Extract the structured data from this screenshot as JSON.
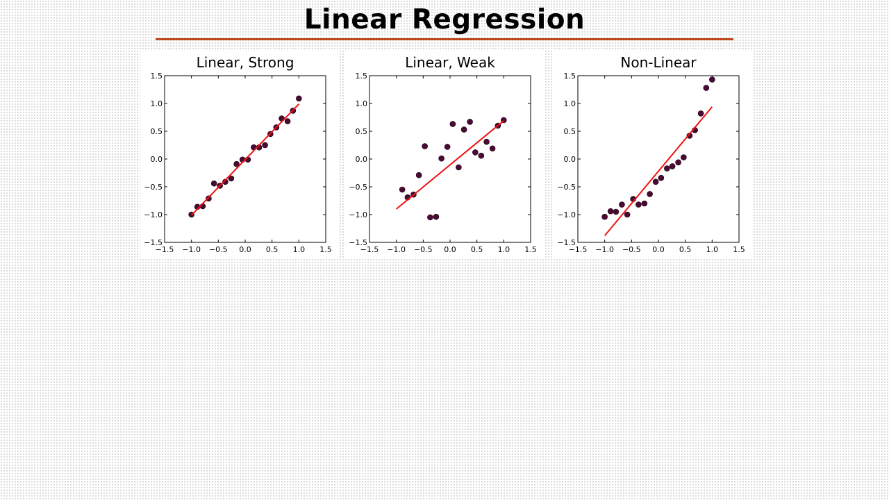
{
  "slide": {
    "title": "Linear Regression",
    "accent_color": "#c0451a"
  },
  "chart_data": [
    {
      "type": "scatter",
      "title": "Linear, Strong",
      "xlim": [
        -1.5,
        1.5
      ],
      "ylim": [
        -1.5,
        1.5
      ],
      "xticks": [
        "−1.5",
        "−1.0",
        "−0.5",
        "0.0",
        "0.5",
        "1.0",
        "1.5"
      ],
      "yticks": [
        "−1.5",
        "−1.0",
        "−0.5",
        "0.0",
        "0.5",
        "1.0",
        "1.5"
      ],
      "grid": false,
      "point_color": "#4a0a33",
      "line_color": "#ee1111",
      "points": [
        [
          -1.0,
          -1.0
        ],
        [
          -0.89,
          -0.86
        ],
        [
          -0.79,
          -0.85
        ],
        [
          -0.68,
          -0.71
        ],
        [
          -0.58,
          -0.44
        ],
        [
          -0.47,
          -0.48
        ],
        [
          -0.37,
          -0.41
        ],
        [
          -0.26,
          -0.35
        ],
        [
          -0.16,
          -0.09
        ],
        [
          -0.05,
          -0.01
        ],
        [
          0.05,
          -0.01
        ],
        [
          0.16,
          0.21
        ],
        [
          0.26,
          0.21
        ],
        [
          0.37,
          0.25
        ],
        [
          0.47,
          0.45
        ],
        [
          0.58,
          0.57
        ],
        [
          0.68,
          0.73
        ],
        [
          0.79,
          0.68
        ],
        [
          0.89,
          0.87
        ],
        [
          1.0,
          1.09
        ]
      ],
      "fit_line": [
        [
          -1.0,
          -1.01
        ],
        [
          1.0,
          0.99
        ]
      ]
    },
    {
      "type": "scatter",
      "title": "Linear, Weak",
      "xlim": [
        -1.5,
        1.5
      ],
      "ylim": [
        -1.5,
        1.5
      ],
      "xticks": [
        "−1.5",
        "−1.0",
        "−0.5",
        "0.0",
        "0.5",
        "1.0",
        "1.5"
      ],
      "yticks": [
        "−1.5",
        "−1.0",
        "−0.5",
        "0.0",
        "0.5",
        "1.0",
        "1.5"
      ],
      "grid": false,
      "point_color": "#4a0a33",
      "line_color": "#ee1111",
      "points": [
        [
          -0.89,
          -0.55
        ],
        [
          -0.79,
          -0.69
        ],
        [
          -0.68,
          -0.64
        ],
        [
          -0.58,
          -0.29
        ],
        [
          -0.47,
          0.23
        ],
        [
          -0.37,
          -1.05
        ],
        [
          -0.26,
          -1.04
        ],
        [
          -0.16,
          0.01
        ],
        [
          -0.05,
          0.22
        ],
        [
          0.05,
          0.63
        ],
        [
          0.16,
          -0.15
        ],
        [
          0.26,
          0.53
        ],
        [
          0.37,
          0.67
        ],
        [
          0.47,
          0.12
        ],
        [
          0.58,
          0.06
        ],
        [
          0.68,
          0.31
        ],
        [
          0.79,
          0.19
        ],
        [
          0.89,
          0.6
        ],
        [
          1.0,
          0.7
        ]
      ],
      "fit_line": [
        [
          -1.0,
          -0.9
        ],
        [
          1.0,
          0.69
        ]
      ]
    },
    {
      "type": "scatter",
      "title": "Non-Linear",
      "xlim": [
        -1.5,
        1.5
      ],
      "ylim": [
        -1.5,
        1.5
      ],
      "xticks": [
        "−1.5",
        "−1.0",
        "−0.5",
        "0.0",
        "0.5",
        "1.0",
        "1.5"
      ],
      "yticks": [
        "−1.5",
        "−1.0",
        "−0.5",
        "0.0",
        "0.5",
        "1.0",
        "1.5"
      ],
      "grid": false,
      "point_color": "#4a0a33",
      "line_color": "#ee1111",
      "points": [
        [
          -1.0,
          -1.04
        ],
        [
          -0.89,
          -0.94
        ],
        [
          -0.79,
          -0.95
        ],
        [
          -0.68,
          -0.82
        ],
        [
          -0.58,
          -1.0
        ],
        [
          -0.47,
          -0.72
        ],
        [
          -0.37,
          -0.82
        ],
        [
          -0.26,
          -0.8
        ],
        [
          -0.16,
          -0.63
        ],
        [
          -0.05,
          -0.41
        ],
        [
          0.05,
          -0.34
        ],
        [
          0.16,
          -0.17
        ],
        [
          0.26,
          -0.13
        ],
        [
          0.37,
          -0.06
        ],
        [
          0.47,
          0.03
        ],
        [
          0.58,
          0.42
        ],
        [
          0.68,
          0.52
        ],
        [
          0.79,
          0.82
        ],
        [
          0.89,
          1.28
        ],
        [
          1.0,
          1.43
        ]
      ],
      "fit_line": [
        [
          -1.0,
          -1.38
        ],
        [
          1.0,
          0.94
        ]
      ]
    }
  ]
}
